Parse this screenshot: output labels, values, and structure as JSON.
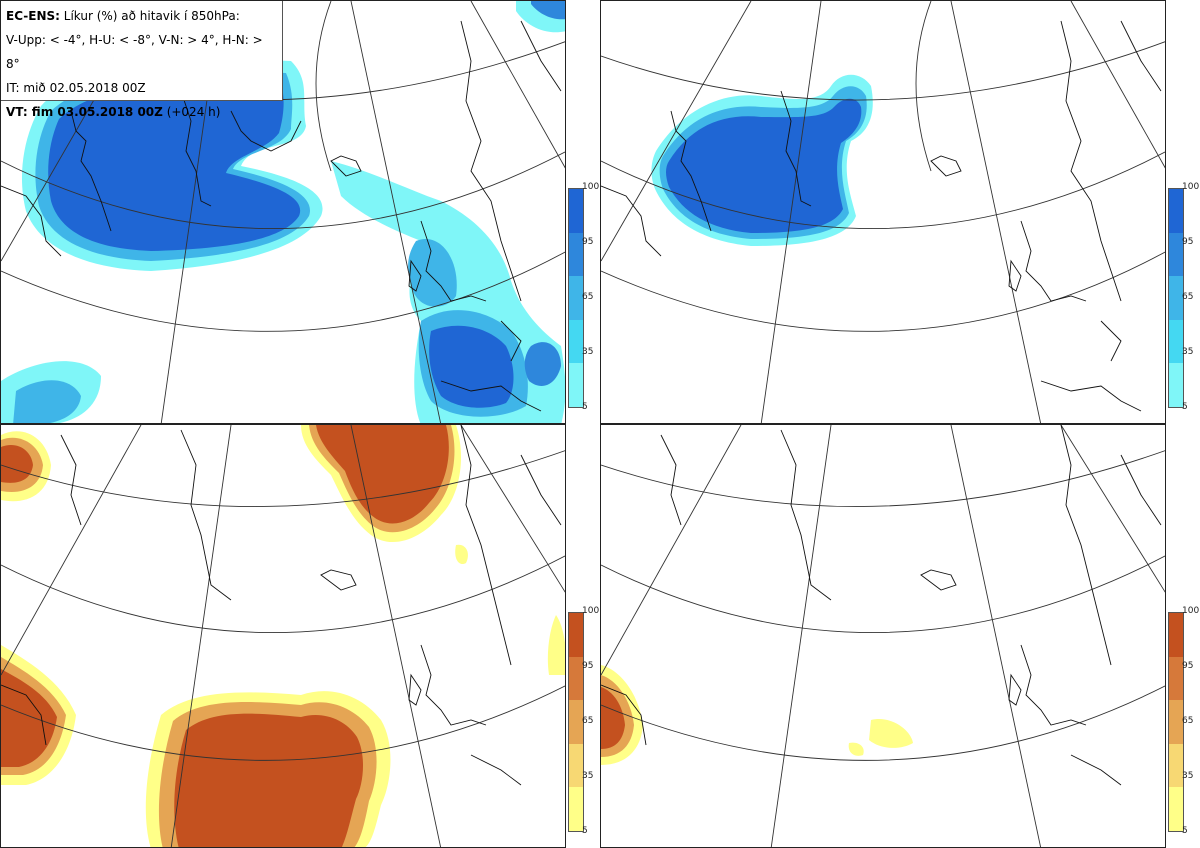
{
  "header": {
    "line1_bold": "EC-ENS:",
    "line1_rest": " Líkur (%) að hitavik í 850hPa:",
    "line2": "V-Upp: < -4°, H-U: < -8°, V-N: > 4°, H-N: > 8°",
    "line3": "IT: mið 02.05.2018 00Z",
    "line4_bold": "VT: fim 03.05.2018 00Z",
    "line4_rest": " (+024 h)"
  },
  "colorbar_ticks": [
    "100",
    "95",
    "65",
    "35",
    "5"
  ],
  "colors": {
    "blue_levels": [
      "#7ff6f8",
      "#44d8f2",
      "#3fb5e8",
      "#2e87dc",
      "#1f66d4"
    ],
    "orange_levels": [
      "#ffff88",
      "#f7d873",
      "#e5a554",
      "#d6793a",
      "#c4511f"
    ]
  },
  "panels": [
    {
      "name": "cold-anomaly-4",
      "scheme": "blue"
    },
    {
      "name": "cold-anomaly-8",
      "scheme": "blue"
    },
    {
      "name": "warm-anomaly-4",
      "scheme": "orange"
    },
    {
      "name": "warm-anomaly-8",
      "scheme": "orange"
    }
  ]
}
